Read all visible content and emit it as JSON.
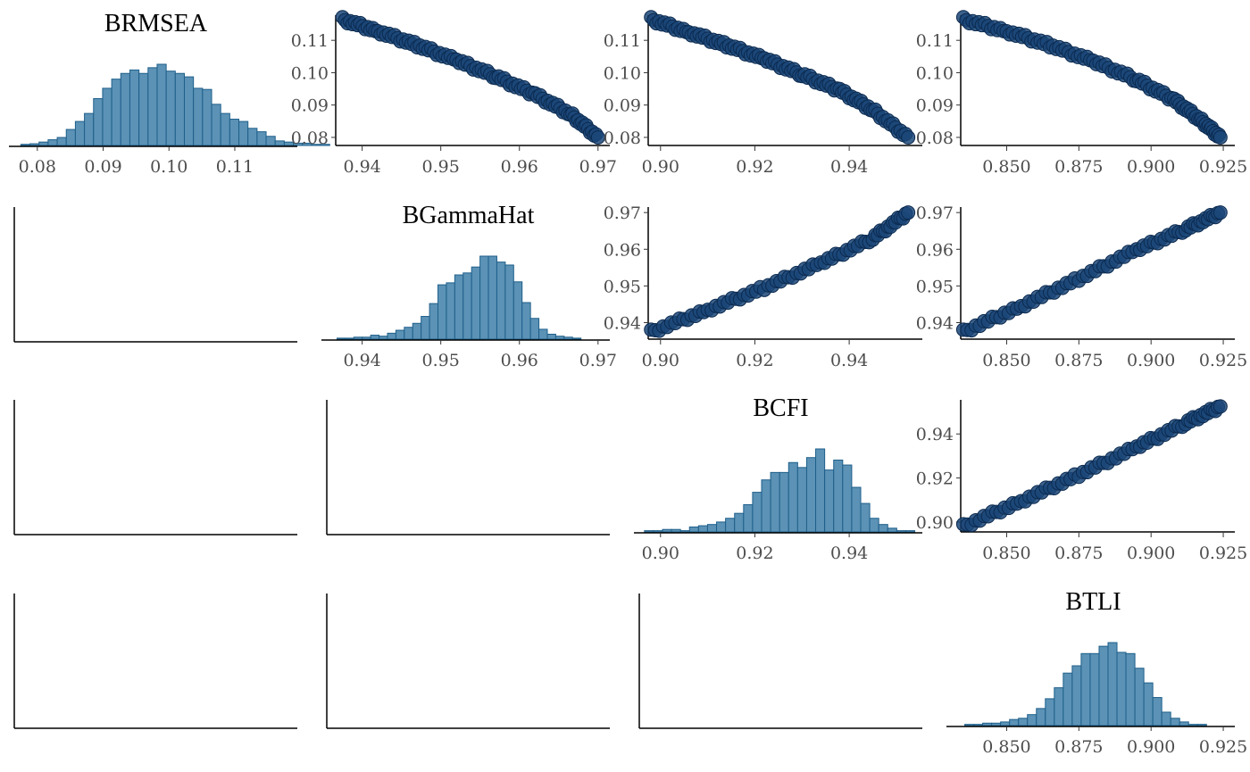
{
  "colors": {
    "bar_fill": "#5b92b5",
    "bar_stroke": "#1f5f8b",
    "point_fill": "#1b4778",
    "point_stroke": "#0b2a4f",
    "axis": "#000000",
    "tick_text": "#4d4d4d"
  },
  "chart_data": [
    {
      "type": "bar",
      "panel": "1-1",
      "title": "BRMSEA",
      "xlim": [
        0.0765,
        0.1195
      ],
      "xticks": [
        "0.08",
        "0.09",
        "0.10",
        "0.11"
      ],
      "bin_start": 0.0775,
      "bin_width": 0.00138,
      "values": [
        2,
        3,
        6,
        10,
        14,
        28,
        42,
        56,
        82,
        100,
        116,
        126,
        132,
        126,
        136,
        142,
        130,
        126,
        120,
        100,
        98,
        72,
        56,
        46,
        42,
        30,
        24,
        16,
        8,
        6,
        4,
        4,
        2,
        2
      ]
    },
    {
      "type": "scatter",
      "panel": "1-2",
      "xvar": "BGammaHat",
      "yvar": "BRMSEA",
      "xlim": [
        0.9355,
        0.9715
      ],
      "ylim": [
        0.0775,
        0.1175
      ],
      "xticks": [
        "0.94",
        "0.95",
        "0.96",
        "0.97"
      ],
      "yticks": [
        "0.08",
        "0.09",
        "0.10",
        "0.11"
      ],
      "points": [
        [
          0.9375,
          0.1165
        ],
        [
          0.942,
          0.1128
        ],
        [
          0.947,
          0.1085
        ],
        [
          0.952,
          0.1038
        ],
        [
          0.957,
          0.0988
        ],
        [
          0.962,
          0.0932
        ],
        [
          0.9665,
          0.0872
        ],
        [
          0.97,
          0.08
        ]
      ]
    },
    {
      "type": "scatter",
      "panel": "1-3",
      "xvar": "BCFI",
      "yvar": "BRMSEA",
      "xlim": [
        0.8955,
        0.9555
      ],
      "ylim": [
        0.0775,
        0.1175
      ],
      "xticks": [
        "0.90",
        "0.92",
        "0.94"
      ],
      "yticks": [
        "0.08",
        "0.09",
        "0.10",
        "0.11"
      ],
      "points": [
        [
          0.898,
          0.1165
        ],
        [
          0.906,
          0.1125
        ],
        [
          0.914,
          0.1085
        ],
        [
          0.922,
          0.1042
        ],
        [
          0.93,
          0.0994
        ],
        [
          0.938,
          0.0945
        ],
        [
          0.945,
          0.0885
        ],
        [
          0.9525,
          0.08
        ]
      ]
    },
    {
      "type": "scatter",
      "panel": "1-4",
      "xvar": "BTLI",
      "yvar": "BRMSEA",
      "xlim": [
        0.831,
        0.929
      ],
      "ylim": [
        0.0775,
        0.1175
      ],
      "xticks": [
        "0.850",
        "0.875",
        "0.900",
        "0.925"
      ],
      "yticks": [
        "0.08",
        "0.09",
        "0.10",
        "0.11"
      ],
      "points": [
        [
          0.835,
          0.1165
        ],
        [
          0.85,
          0.1128
        ],
        [
          0.865,
          0.1085
        ],
        [
          0.88,
          0.1035
        ],
        [
          0.895,
          0.0978
        ],
        [
          0.908,
          0.0915
        ],
        [
          0.917,
          0.0855
        ],
        [
          0.924,
          0.08
        ]
      ]
    },
    {
      "type": "bar",
      "panel": "2-2",
      "title": "BGammaHat",
      "xlim": [
        0.9355,
        0.9715
      ],
      "xticks": [
        "0.94",
        "0.95",
        "0.96",
        "0.97"
      ],
      "bin_start": 0.9368,
      "bin_width": 0.00107,
      "values": [
        2,
        2,
        4,
        4,
        8,
        6,
        12,
        18,
        24,
        32,
        46,
        72,
        110,
        114,
        130,
        134,
        146,
        168,
        168,
        156,
        150,
        116,
        74,
        42,
        20,
        10,
        6,
        4,
        2
      ]
    },
    {
      "type": "scatter",
      "panel": "2-3",
      "xvar": "BCFI",
      "yvar": "BGammaHat",
      "xlim": [
        0.8955,
        0.9555
      ],
      "ylim": [
        0.9355,
        0.9715
      ],
      "xticks": [
        "0.90",
        "0.92",
        "0.94"
      ],
      "yticks": [
        "0.94",
        "0.95",
        "0.96",
        "0.97"
      ],
      "points": [
        [
          0.898,
          0.9375
        ],
        [
          0.91,
          0.9435
        ],
        [
          0.922,
          0.9495
        ],
        [
          0.934,
          0.9562
        ],
        [
          0.945,
          0.963
        ],
        [
          0.9525,
          0.97
        ]
      ]
    },
    {
      "type": "scatter",
      "panel": "2-4",
      "xvar": "BTLI",
      "yvar": "BGammaHat",
      "xlim": [
        0.831,
        0.929
      ],
      "ylim": [
        0.9355,
        0.9715
      ],
      "xticks": [
        "0.850",
        "0.875",
        "0.900",
        "0.925"
      ],
      "yticks": [
        "0.94",
        "0.95",
        "0.96",
        "0.97"
      ],
      "points": [
        [
          0.835,
          0.9375
        ],
        [
          0.855,
          0.9445
        ],
        [
          0.875,
          0.952
        ],
        [
          0.895,
          0.9598
        ],
        [
          0.912,
          0.9655
        ],
        [
          0.924,
          0.97
        ]
      ]
    },
    {
      "type": "bar",
      "panel": "3-3",
      "title": "BCFI",
      "xlim": [
        0.8955,
        0.9555
      ],
      "xticks": [
        "0.90",
        "0.92",
        "0.94"
      ],
      "bin_start": 0.8966,
      "bin_width": 0.00191,
      "values": [
        2,
        2,
        4,
        4,
        2,
        8,
        10,
        12,
        16,
        22,
        30,
        44,
        64,
        84,
        96,
        96,
        112,
        104,
        120,
        134,
        100,
        116,
        108,
        72,
        46,
        22,
        12,
        6,
        2,
        2
      ]
    },
    {
      "type": "scatter",
      "panel": "3-4",
      "xvar": "BTLI",
      "yvar": "BCFI",
      "xlim": [
        0.831,
        0.929
      ],
      "ylim": [
        0.8955,
        0.9555
      ],
      "xticks": [
        "0.850",
        "0.875",
        "0.900",
        "0.925"
      ],
      "yticks": [
        "0.90",
        "0.92",
        "0.94"
      ],
      "points": [
        [
          0.835,
          0.898
        ],
        [
          0.855,
          0.9095
        ],
        [
          0.875,
          0.9215
        ],
        [
          0.895,
          0.934
        ],
        [
          0.912,
          0.945
        ],
        [
          0.924,
          0.9525
        ]
      ]
    },
    {
      "type": "bar",
      "panel": "4-4",
      "title": "BTLI",
      "xlim": [
        0.831,
        0.929
      ],
      "xticks": [
        "0.850",
        "0.875",
        "0.900",
        "0.925"
      ],
      "bin_start": 0.8355,
      "bin_width": 0.0031,
      "values": [
        2,
        2,
        4,
        4,
        6,
        10,
        12,
        18,
        28,
        44,
        62,
        86,
        98,
        118,
        118,
        130,
        136,
        120,
        118,
        94,
        70,
        46,
        22,
        12,
        6,
        2,
        2
      ]
    },
    {
      "type": "scatter",
      "panel": "2-1",
      "empty": true
    },
    {
      "type": "scatter",
      "panel": "3-1",
      "empty": true
    },
    {
      "type": "scatter",
      "panel": "3-2",
      "empty": true
    },
    {
      "type": "scatter",
      "panel": "4-1",
      "empty": true
    },
    {
      "type": "scatter",
      "panel": "4-2",
      "empty": true
    },
    {
      "type": "scatter",
      "panel": "4-3",
      "empty": true
    }
  ]
}
